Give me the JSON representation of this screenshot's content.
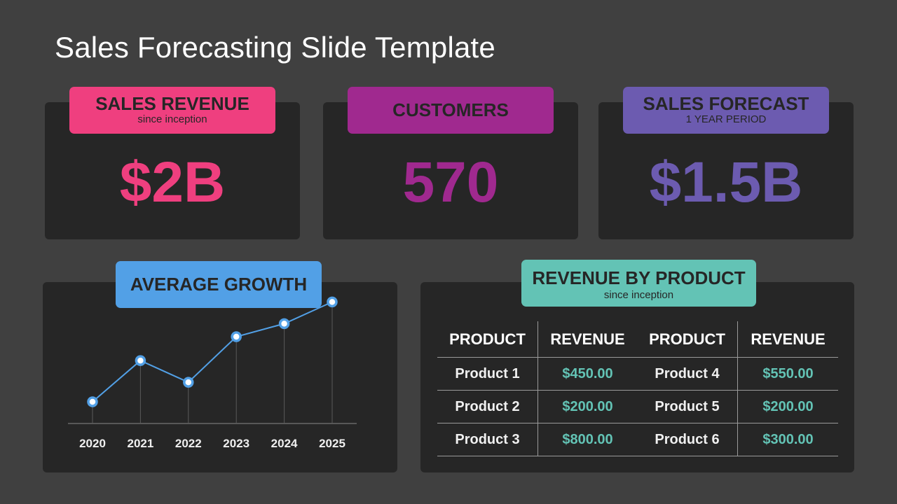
{
  "title": "Sales Forecasting Slide Template",
  "colors": {
    "background": "#404040",
    "card": "#262626",
    "pink": "#ef3f7f",
    "purple": "#a0298f",
    "violet": "#6c5bb0",
    "blue": "#52a0e6",
    "teal": "#63c3b5"
  },
  "stats": {
    "revenue": {
      "label": "SALES REVENUE",
      "sub": "since inception",
      "value": "$2B"
    },
    "customers": {
      "label": "CUSTOMERS",
      "value": "570"
    },
    "forecast": {
      "label": "SALES FORECAST",
      "sub": "1 YEAR PERIOD",
      "value": "$1.5B"
    }
  },
  "growth": {
    "label": "AVERAGE GROWTH"
  },
  "chart_data": {
    "type": "line",
    "x": [
      "2020",
      "2021",
      "2022",
      "2023",
      "2024",
      "2025"
    ],
    "values": [
      1.0,
      2.9,
      1.9,
      4.0,
      4.6,
      5.6
    ],
    "ylim": [
      0,
      6
    ],
    "grid": false,
    "title": "",
    "xlabel": "",
    "ylabel": ""
  },
  "revenue_table": {
    "label": "REVENUE BY PRODUCT",
    "sub": "since inception",
    "headers": [
      "PRODUCT",
      "REVENUE",
      "PRODUCT",
      "REVENUE"
    ],
    "rows": [
      [
        "Product 1",
        "$450.00",
        "Product 4",
        "$550.00"
      ],
      [
        "Product 2",
        "$200.00",
        "Product 5",
        "$200.00"
      ],
      [
        "Product 3",
        "$800.00",
        "Product 6",
        "$300.00"
      ]
    ]
  }
}
